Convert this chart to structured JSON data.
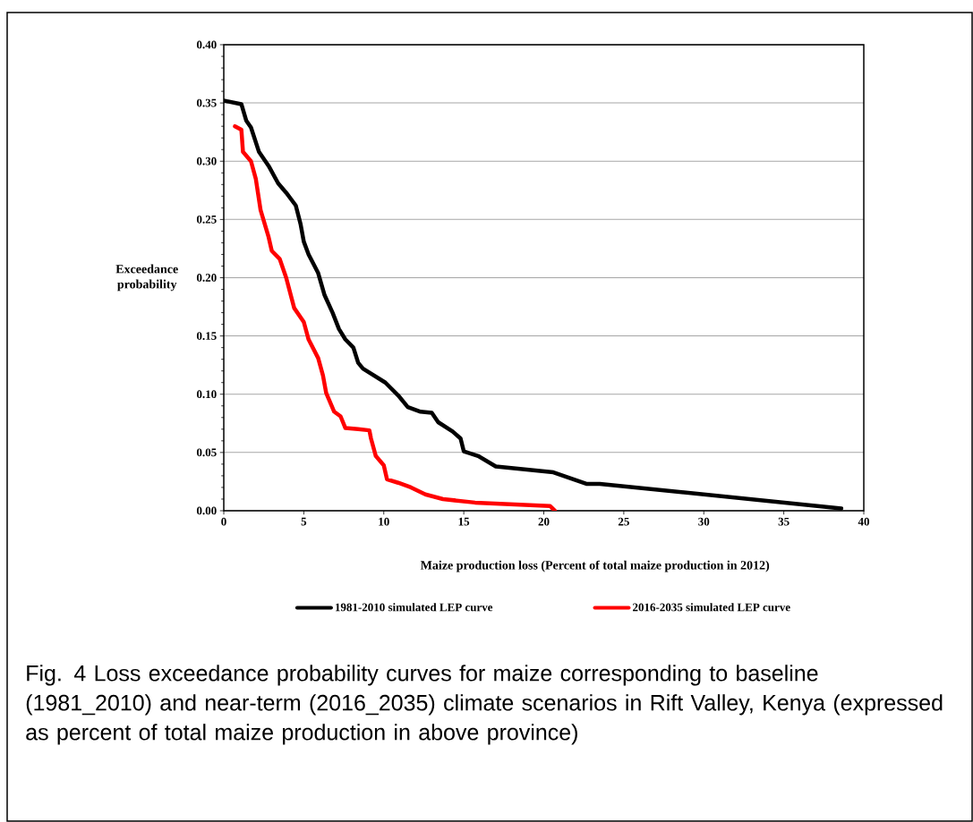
{
  "chart_data": {
    "type": "line",
    "xlabel": "Maize production  loss (Percent  of total maize production  in 2012)",
    "ylabel": "Exceedance probability",
    "annotations": [
      "Fig. 4 Loss exceedance probability curves for maize corresponding to baseline (1981_2010) and near-term (2016_2035) climate scenarios in Rift Valley, Kenya (expressed as percent of total maize production in above province)"
    ],
    "xlim": [
      0,
      40
    ],
    "xticks": [
      0,
      5,
      10,
      15,
      20,
      25,
      30,
      35,
      40
    ],
    "ylim": [
      0,
      0.4
    ],
    "yticks": [
      {
        "value": 0,
        "label": "0.00"
      },
      {
        "value": 0.05,
        "label": "0.05"
      },
      {
        "value": 0.1,
        "label": "0.10"
      },
      {
        "value": 0.15,
        "label": "0.15"
      },
      {
        "value": 0.2,
        "label": "0.20"
      },
      {
        "value": 0.25,
        "label": "0.25"
      },
      {
        "value": 0.3,
        "label": "0.30"
      },
      {
        "value": 0.35,
        "label": "0.35"
      },
      {
        "value": 0.4,
        "label": "0.40"
      }
    ],
    "grid": "y",
    "legend": "bottom",
    "marker": "none",
    "line_style": "solid",
    "series": [
      {
        "name": "1981-2010 simulated LEP curve",
        "color": "#000000",
        "x": [
          0,
          1.1,
          1.4,
          1.7,
          2.2,
          2.8,
          3.4,
          3.9,
          4.5,
          4.8,
          5.0,
          5.3,
          5.9,
          6.3,
          6.8,
          7.2,
          7.6,
          8.1,
          8.4,
          8.7,
          10.1,
          10.9,
          11.5,
          12.3,
          13.0,
          13.4,
          14.3,
          14.8,
          15.0,
          15.9,
          17.0,
          20.6,
          22.7,
          23.5,
          38.6
        ],
        "values": [
          0.352,
          0.349,
          0.335,
          0.329,
          0.308,
          0.296,
          0.281,
          0.273,
          0.262,
          0.246,
          0.231,
          0.22,
          0.204,
          0.185,
          0.17,
          0.156,
          0.147,
          0.14,
          0.127,
          0.122,
          0.11,
          0.099,
          0.089,
          0.085,
          0.084,
          0.076,
          0.068,
          0.062,
          0.051,
          0.047,
          0.038,
          0.033,
          0.023,
          0.023,
          0.002
        ]
      },
      {
        "name": "2016-2035 simulated LEP curve",
        "color": "#ff0000",
        "x": [
          0.7,
          1.1,
          1.2,
          1.7,
          2.0,
          2.3,
          2.8,
          3.0,
          3.5,
          3.9,
          4.4,
          5.0,
          5.3,
          5.9,
          6.2,
          6.4,
          6.9,
          7.3,
          7.6,
          8.4,
          9.1,
          9.2,
          9.5,
          10.0,
          10.2,
          10.9,
          11.7,
          12.6,
          13.7,
          15.7,
          20.4,
          20.7
        ],
        "values": [
          0.33,
          0.327,
          0.308,
          0.3,
          0.285,
          0.258,
          0.235,
          0.223,
          0.216,
          0.2,
          0.174,
          0.162,
          0.147,
          0.131,
          0.116,
          0.101,
          0.085,
          0.081,
          0.071,
          0.07,
          0.069,
          0.062,
          0.047,
          0.039,
          0.027,
          0.024,
          0.02,
          0.014,
          0.01,
          0.007,
          0.004,
          0.0
        ]
      }
    ]
  }
}
